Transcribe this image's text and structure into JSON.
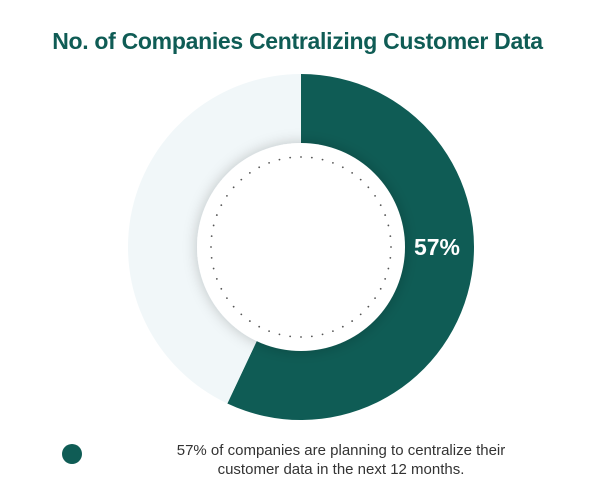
{
  "title": "No. of Companies Centralizing Customer Data",
  "chart_data": {
    "type": "pie",
    "variant": "donut",
    "slices": [
      {
        "label": "57%",
        "value": 57,
        "color": "#0f5c55"
      },
      {
        "value": 43,
        "color": "#f1f7f9"
      }
    ],
    "data_labels": [
      "57%"
    ]
  },
  "legend": {
    "color": "#0f5c55",
    "text": "57% of companies are planning to centralize their customer data in the next 12 months."
  },
  "colors": {
    "accent": "#0f5c55",
    "remainder": "#f1f7f9",
    "text": "#333333"
  }
}
